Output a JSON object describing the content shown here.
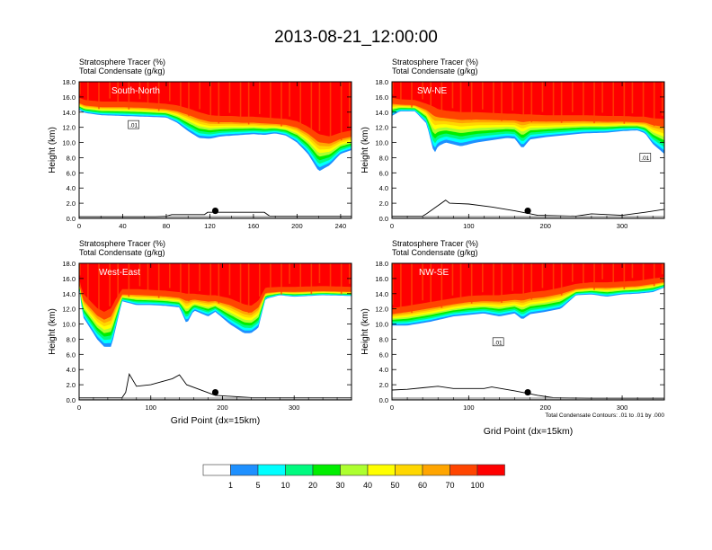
{
  "title": "2013-08-21_12:00:00",
  "chart_data": {
    "type": "heatmap",
    "title": "2013-08-21_12:00:00",
    "subtitle_lines": [
      "Stratosphere Tracer   (%)",
      "Total Condensate   (g/kg)"
    ],
    "ylabel": "Height (km)",
    "xlabel": "Grid Point (dx=15km)",
    "ylim": [
      0,
      18
    ],
    "yticks": [
      "0.0",
      "2.0",
      "4.0",
      "6.0",
      "8.0",
      "10.0",
      "12.0",
      "14.0",
      "16.0",
      "18.0"
    ],
    "contour_note": "Total Condensate Contours: .01 to .01 by .000",
    "contour_label": ".01",
    "colorbar": {
      "levels": [
        "1",
        "5",
        "10",
        "20",
        "30",
        "40",
        "50",
        "60",
        "70",
        "100"
      ],
      "colors": [
        "#ffffff",
        "#1e90ff",
        "#00ffff",
        "#00fa7f",
        "#00ee00",
        "#adff2f",
        "#ffff00",
        "#ffd700",
        "#ffa500",
        "#ff4500",
        "#ff0000"
      ]
    },
    "panels": [
      {
        "name": "South-North",
        "xlim": [
          0,
          250
        ],
        "xticks": [
          "0",
          "40",
          "80",
          "120",
          "160",
          "200",
          "240"
        ],
        "xtick_values": [
          0,
          40,
          80,
          120,
          160,
          200,
          240
        ],
        "show_xlabel": false,
        "marker_x": 125,
        "marker_y": 1.0,
        "tropopause": {
          "x": [
            0,
            5,
            20,
            40,
            60,
            80,
            90,
            100,
            110,
            120,
            130,
            140,
            150,
            160,
            170,
            180,
            190,
            200,
            210,
            220,
            230,
            240,
            250
          ],
          "blue": [
            14.3,
            13.9,
            13.6,
            13.5,
            13.4,
            13.3,
            12.6,
            11.5,
            10.6,
            10.5,
            10.8,
            10.9,
            11.0,
            11.1,
            11.0,
            11.2,
            10.9,
            10.0,
            8.5,
            6.2,
            7.0,
            8.5,
            9.0
          ],
          "top70": [
            15.3,
            15.0,
            14.8,
            14.8,
            14.7,
            14.5,
            14.3,
            13.9,
            13.4,
            13.0,
            12.9,
            12.9,
            12.8,
            12.8,
            12.7,
            12.6,
            12.5,
            12.2,
            11.5,
            10.5,
            10.2,
            10.7,
            11.0
          ]
        },
        "ground": {
          "x": [
            0,
            70,
            80,
            85,
            115,
            118,
            170,
            175,
            250
          ],
          "y": [
            0.2,
            0.2,
            0.3,
            0.5,
            0.5,
            0.8,
            0.8,
            0.3,
            0.3
          ]
        }
      },
      {
        "name": "SW-NE",
        "xlim": [
          0,
          355
        ],
        "xticks": [
          "0",
          "100",
          "200",
          "300"
        ],
        "xtick_values": [
          0,
          100,
          200,
          300
        ],
        "show_xlabel": false,
        "marker_x": 177,
        "marker_y": 1.0,
        "tropopause": {
          "x": [
            0,
            10,
            30,
            45,
            55,
            60,
            70,
            90,
            110,
            130,
            150,
            160,
            170,
            180,
            200,
            220,
            250,
            280,
            300,
            320,
            330,
            340,
            355
          ],
          "blue": [
            13.5,
            14.1,
            14.1,
            12.5,
            8.5,
            9.5,
            10.0,
            9.5,
            10.0,
            10.3,
            10.6,
            10.5,
            9.2,
            10.4,
            10.7,
            10.9,
            11.2,
            11.3,
            11.5,
            11.6,
            11.2,
            9.8,
            8.5
          ],
          "top70": [
            15.3,
            15.1,
            15.0,
            14.5,
            14.1,
            13.8,
            13.6,
            13.4,
            13.4,
            13.3,
            13.2,
            13.2,
            13.1,
            13.1,
            13.0,
            13.0,
            13.0,
            12.9,
            12.9,
            12.8,
            12.8,
            12.6,
            12.5
          ]
        },
        "ground": {
          "x": [
            0,
            40,
            45,
            70,
            75,
            100,
            130,
            160,
            190,
            240,
            260,
            300,
            330,
            355
          ],
          "y": [
            0.3,
            0.3,
            0.6,
            2.4,
            2.0,
            1.9,
            1.5,
            1.0,
            0.4,
            0.3,
            0.6,
            0.4,
            0.8,
            1.2
          ]
        }
      },
      {
        "name": "West-East",
        "xlim": [
          0,
          380
        ],
        "xticks": [
          "0",
          "100",
          "200",
          "300"
        ],
        "xtick_values": [
          0,
          100,
          200,
          300
        ],
        "show_xlabel": true,
        "marker_x": 190,
        "marker_y": 1.0,
        "tropopause": {
          "x": [
            0,
            5,
            15,
            25,
            35,
            45,
            50,
            60,
            80,
            100,
            120,
            140,
            150,
            160,
            180,
            190,
            210,
            230,
            240,
            250,
            260,
            280,
            300,
            340,
            380
          ],
          "blue": [
            15.0,
            11.0,
            9.5,
            8.0,
            7.0,
            7.0,
            9.0,
            13.0,
            12.5,
            12.5,
            12.4,
            12.2,
            10.0,
            11.8,
            11.0,
            11.6,
            10.0,
            8.8,
            8.8,
            9.5,
            13.3,
            13.8,
            13.6,
            13.8,
            13.7
          ],
          "top70": [
            15.4,
            13.5,
            12.5,
            11.5,
            11.0,
            11.5,
            12.5,
            14.0,
            14.0,
            13.9,
            13.8,
            13.6,
            13.4,
            13.4,
            13.2,
            13.2,
            12.8,
            12.0,
            11.8,
            12.5,
            14.2,
            14.3,
            14.3,
            14.4,
            14.3
          ]
        },
        "ground": {
          "x": [
            0,
            60,
            65,
            70,
            80,
            100,
            130,
            140,
            150,
            190,
            240,
            260,
            280,
            300,
            380
          ],
          "y": [
            0.3,
            0.3,
            1.0,
            3.4,
            1.8,
            2.0,
            2.8,
            3.3,
            2.0,
            0.6,
            0.3,
            0.3,
            0.3,
            0.3,
            0.3
          ]
        }
      },
      {
        "name": "NW-SE",
        "xlim": [
          0,
          355
        ],
        "xticks": [
          "0",
          "100",
          "200",
          "300"
        ],
        "xtick_values": [
          0,
          100,
          200,
          300
        ],
        "show_xlabel": true,
        "marker_x": 177,
        "marker_y": 1.0,
        "tropopause": {
          "x": [
            0,
            20,
            50,
            80,
            100,
            120,
            140,
            160,
            170,
            180,
            200,
            220,
            240,
            260,
            280,
            300,
            320,
            340,
            355
          ],
          "blue": [
            9.8,
            9.8,
            10.3,
            11.0,
            11.2,
            11.4,
            11.0,
            11.4,
            10.6,
            11.3,
            11.6,
            12.0,
            13.8,
            13.9,
            13.6,
            13.9,
            14.0,
            14.2,
            14.8
          ],
          "top70": [
            11.5,
            11.8,
            12.3,
            12.8,
            13.1,
            13.2,
            13.2,
            13.4,
            13.4,
            13.6,
            13.8,
            14.2,
            14.7,
            14.9,
            14.9,
            15.0,
            15.1,
            15.4,
            15.6
          ]
        },
        "ground": {
          "x": [
            0,
            20,
            40,
            60,
            80,
            100,
            120,
            130,
            160,
            190,
            210,
            260,
            300,
            355
          ],
          "y": [
            1.3,
            1.4,
            1.6,
            1.8,
            1.5,
            1.5,
            1.5,
            1.7,
            1.2,
            0.6,
            0.3,
            0.2,
            0.2,
            0.2
          ]
        }
      }
    ]
  }
}
